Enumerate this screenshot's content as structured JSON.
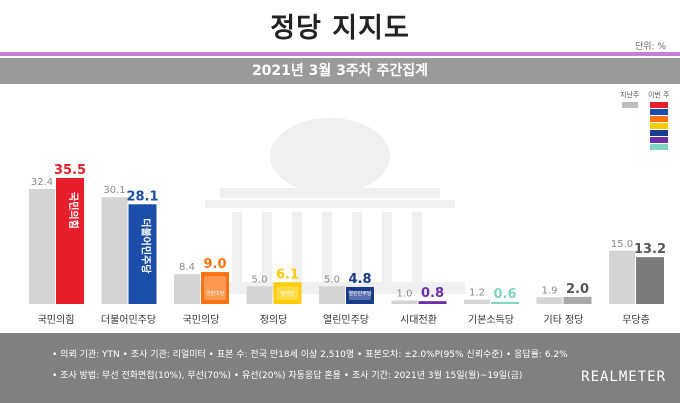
{
  "title": "정당 지지도",
  "unit": "단위: %",
  "subtitle": "2021년 3월 3주차 주간집계",
  "legend": {
    "prev_label": "지난주",
    "curr_label": "이번 주"
  },
  "colors": {
    "prev_bar": "#d4d4d4",
    "party": [
      "#e61e2b",
      "#1b4ea8",
      "#ff7210",
      "#ffcc00",
      "#1a3a8c",
      "#6b2fa8",
      "#7fd6c2",
      "#a8a8a8",
      "#7b7b7b"
    ]
  },
  "chart_data": {
    "type": "bar",
    "categories": [
      "국민의힘",
      "더불어민주당",
      "국민의당",
      "정의당",
      "열린민주당",
      "시대전환",
      "기본소득당",
      "기타 정당",
      "무당층"
    ],
    "series": [
      {
        "name": "지난주",
        "values": [
          32.4,
          30.1,
          8.4,
          5.0,
          5.0,
          1.0,
          1.2,
          1.9,
          15.0
        ]
      },
      {
        "name": "이번 주",
        "values": [
          35.5,
          28.1,
          9.0,
          6.1,
          4.8,
          0.8,
          0.6,
          2.0,
          13.2
        ]
      }
    ],
    "ylim": [
      0,
      40
    ],
    "party_logos": [
      "국민의힘",
      "더불어민주당",
      "국민의당",
      "정의당",
      "열린민주당"
    ]
  },
  "footer": {
    "line1": "• 의뢰 기관: YTN • 조사 기관: 리얼미터 • 표본 수: 전국 만18세 이상 2,510명 • 표본오차: ±2.0%P(95% 신뢰수준) • 응답률: 6.2%",
    "line2": "• 조사 방법: 무선 전화면접(10%), 무선(70%) • 유선(20%) 자동응답 혼용 • 조사 기간: 2021년 3월 15일(월)~19일(금)",
    "brand": "REALMETER"
  }
}
